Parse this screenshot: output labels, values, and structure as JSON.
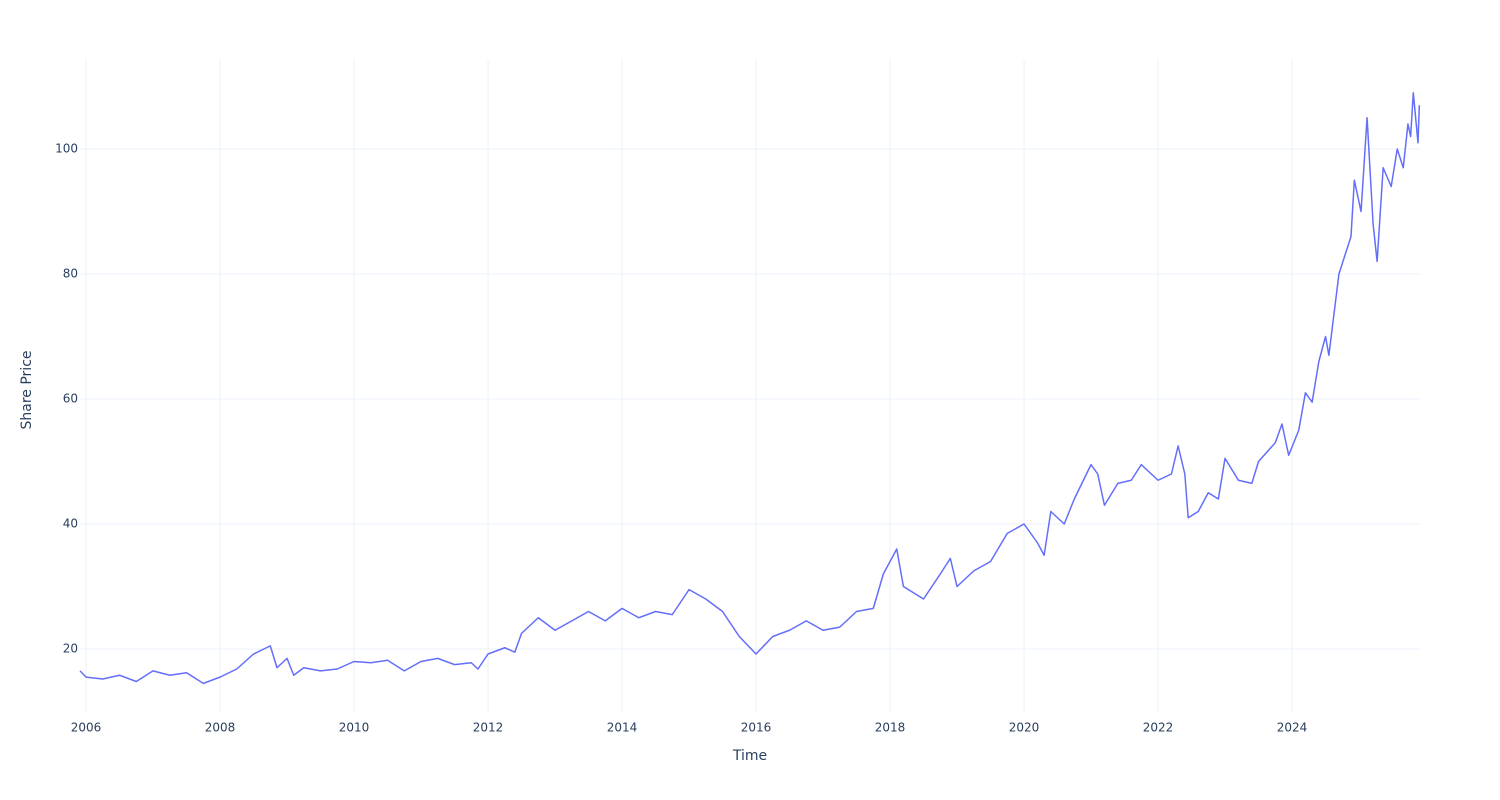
{
  "chart_data": {
    "type": "line",
    "x_label": "Time",
    "y_label": "Share Price",
    "xlim": [
      2005.91,
      2025.91
    ],
    "ylim": [
      9.92,
      114.24
    ],
    "xticks": [
      2006,
      2008,
      2010,
      2012,
      2014,
      2016,
      2018,
      2020,
      2022,
      2024
    ],
    "yticks": [
      20,
      40,
      60,
      80,
      100
    ],
    "grid": true,
    "series": [
      {
        "color": "#636efa",
        "x": [
          2005.91,
          2006.0,
          2006.25,
          2006.5,
          2006.75,
          2007.0,
          2007.25,
          2007.5,
          2007.75,
          2008.0,
          2008.25,
          2008.5,
          2008.75,
          2008.85,
          2009.0,
          2009.1,
          2009.25,
          2009.5,
          2009.75,
          2010.0,
          2010.25,
          2010.5,
          2010.75,
          2011.0,
          2011.25,
          2011.5,
          2011.75,
          2011.85,
          2012.0,
          2012.25,
          2012.4,
          2012.5,
          2012.75,
          2013.0,
          2013.25,
          2013.5,
          2013.75,
          2014.0,
          2014.25,
          2014.5,
          2014.75,
          2015.0,
          2015.25,
          2015.5,
          2015.75,
          2016.0,
          2016.25,
          2016.5,
          2016.75,
          2017.0,
          2017.25,
          2017.5,
          2017.75,
          2017.9,
          2018.1,
          2018.2,
          2018.5,
          2018.75,
          2018.9,
          2019.0,
          2019.25,
          2019.5,
          2019.75,
          2020.0,
          2020.2,
          2020.3,
          2020.4,
          2020.6,
          2020.75,
          2021.0,
          2021.1,
          2021.2,
          2021.4,
          2021.6,
          2021.75,
          2022.0,
          2022.2,
          2022.3,
          2022.4,
          2022.45,
          2022.6,
          2022.75,
          2022.9,
          2023.0,
          2023.2,
          2023.4,
          2023.5,
          2023.75,
          2023.85,
          2023.95,
          2024.1,
          2024.2,
          2024.3,
          2024.4,
          2024.5,
          2024.55,
          2024.7,
          2024.88,
          2024.93,
          2025.03,
          2025.12,
          2025.21,
          2025.27,
          2025.36,
          2025.48,
          2025.57,
          2025.66,
          2025.73,
          2025.77,
          2025.81,
          2025.88,
          2025.9
        ],
        "values": [
          16.5,
          15.5,
          15.2,
          15.8,
          14.8,
          16.5,
          15.8,
          16.2,
          14.5,
          15.5,
          16.8,
          19.2,
          20.5,
          17,
          18.5,
          15.8,
          17,
          16.5,
          16.8,
          18,
          17.8,
          18.2,
          16.5,
          18,
          18.5,
          17.5,
          17.8,
          16.8,
          19.2,
          20.2,
          19.5,
          22.5,
          25,
          23,
          24.5,
          26,
          24.5,
          26.5,
          25,
          26,
          25.5,
          29.5,
          28,
          26,
          22,
          19.2,
          22,
          23,
          24.5,
          23,
          23.5,
          26,
          26.5,
          32,
          36,
          30,
          28,
          32,
          34.5,
          30,
          32.5,
          34,
          38.5,
          40,
          37,
          35,
          42,
          40,
          44,
          49.5,
          48,
          43,
          46.5,
          47,
          49.5,
          47,
          48,
          52.5,
          48,
          41,
          42,
          45,
          44,
          50.5,
          47,
          46.5,
          50,
          53,
          56,
          51,
          55,
          61,
          59.5,
          66,
          70,
          67,
          80,
          86,
          95,
          90,
          105,
          88,
          82,
          97,
          94,
          100,
          97,
          104,
          102,
          109,
          101,
          107
        ]
      }
    ]
  }
}
